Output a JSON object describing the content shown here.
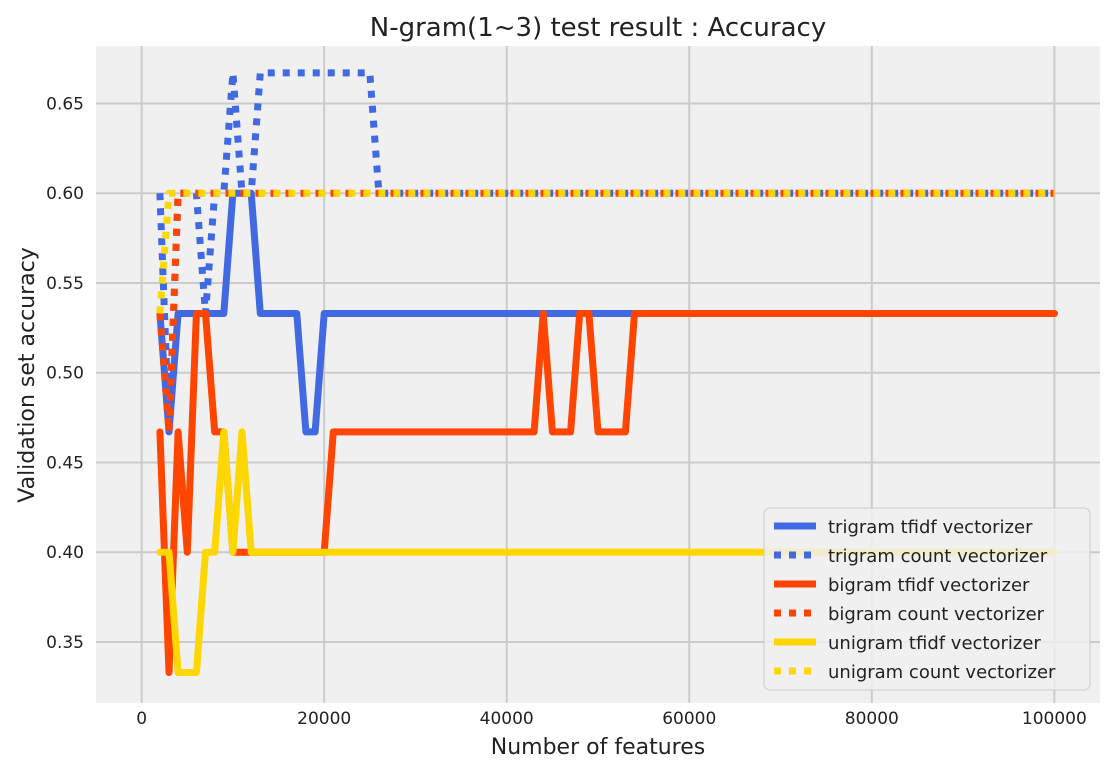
{
  "chart_data": {
    "type": "line",
    "title": "N-gram(1~3) test result : Accuracy",
    "xlabel": "Number of features",
    "ylabel": "Validation set accuracy",
    "xlim": [
      -5000,
      105000
    ],
    "ylim": [
      0.316,
      0.682
    ],
    "xticks": [
      0,
      20000,
      40000,
      60000,
      80000,
      100000
    ],
    "xtick_labels": [
      "0",
      "20000",
      "40000",
      "60000",
      "80000",
      "100000"
    ],
    "yticks": [
      0.35,
      0.4,
      0.45,
      0.5,
      0.55,
      0.6,
      0.65
    ],
    "ytick_labels": [
      "0.35",
      "0.40",
      "0.45",
      "0.50",
      "0.55",
      "0.60",
      "0.65"
    ],
    "grid": true,
    "legend_position": "bottom-right",
    "background": "#f0f0f0",
    "grid_color": "#cbcbcb",
    "series": [
      {
        "name": "trigram tfidf vectorizer",
        "color": "#4169e1",
        "style": "solid",
        "x": [
          2000,
          3000,
          4000,
          5000,
          6000,
          7000,
          8000,
          9000,
          10000,
          11000,
          12000,
          13000,
          14000,
          15000,
          16000,
          17000,
          18000,
          19000,
          20000,
          22000,
          26000,
          30000,
          40000,
          50000,
          54000,
          60000,
          70000,
          80000,
          90000,
          100000
        ],
        "y": [
          0.533,
          0.467,
          0.533,
          0.533,
          0.533,
          0.533,
          0.533,
          0.533,
          0.6,
          0.6,
          0.6,
          0.533,
          0.533,
          0.533,
          0.533,
          0.533,
          0.467,
          0.467,
          0.533,
          0.533,
          0.533,
          0.533,
          0.533,
          0.533,
          0.533,
          0.533,
          0.533,
          0.533,
          0.533,
          0.533
        ]
      },
      {
        "name": "trigram count vectorizer",
        "color": "#4169e1",
        "style": "dotted",
        "x": [
          2000,
          3000,
          4000,
          5000,
          6000,
          7000,
          8000,
          9000,
          10000,
          11000,
          12000,
          13000,
          14000,
          16000,
          18000,
          20000,
          22000,
          24000,
          25000,
          26000,
          27000,
          30000,
          40000,
          50000,
          60000,
          70000,
          80000,
          90000,
          100000
        ],
        "y": [
          0.6,
          0.467,
          0.6,
          0.6,
          0.6,
          0.533,
          0.6,
          0.6,
          0.667,
          0.6,
          0.6,
          0.667,
          0.667,
          0.667,
          0.667,
          0.667,
          0.667,
          0.667,
          0.667,
          0.6,
          0.6,
          0.6,
          0.6,
          0.6,
          0.6,
          0.6,
          0.6,
          0.6,
          0.6
        ]
      },
      {
        "name": "bigram tfidf vectorizer",
        "color": "#ff4500",
        "style": "solid",
        "x": [
          2000,
          3000,
          4000,
          5000,
          6000,
          7000,
          8000,
          9000,
          10000,
          11000,
          12000,
          14000,
          16000,
          18000,
          20000,
          21000,
          25000,
          30000,
          40000,
          43000,
          44000,
          45000,
          47000,
          48000,
          49000,
          50000,
          51000,
          53000,
          54000,
          60000,
          70000,
          80000,
          90000,
          100000
        ],
        "y": [
          0.467,
          0.333,
          0.467,
          0.4,
          0.533,
          0.533,
          0.467,
          0.467,
          0.4,
          0.4,
          0.4,
          0.4,
          0.4,
          0.4,
          0.4,
          0.467,
          0.467,
          0.467,
          0.467,
          0.467,
          0.533,
          0.467,
          0.467,
          0.533,
          0.533,
          0.467,
          0.467,
          0.467,
          0.533,
          0.533,
          0.533,
          0.533,
          0.533,
          0.533
        ]
      },
      {
        "name": "bigram count vectorizer",
        "color": "#ff4500",
        "style": "dotted",
        "x": [
          2000,
          3000,
          4000,
          5000,
          6000,
          8000,
          10000,
          15000,
          20000,
          30000,
          40000,
          50000,
          60000,
          70000,
          80000,
          90000,
          100000
        ],
        "y": [
          0.533,
          0.467,
          0.6,
          0.6,
          0.6,
          0.6,
          0.6,
          0.6,
          0.6,
          0.6,
          0.6,
          0.6,
          0.6,
          0.6,
          0.6,
          0.6,
          0.6
        ]
      },
      {
        "name": "unigram tfidf vectorizer",
        "color": "#ffd700",
        "style": "solid",
        "x": [
          2000,
          3000,
          4000,
          5000,
          6000,
          7000,
          8000,
          9000,
          10000,
          11000,
          12000,
          14000,
          16000,
          18000,
          20000,
          30000,
          40000,
          50000,
          60000,
          70000,
          80000,
          90000,
          100000
        ],
        "y": [
          0.4,
          0.4,
          0.333,
          0.333,
          0.333,
          0.4,
          0.4,
          0.467,
          0.4,
          0.467,
          0.4,
          0.4,
          0.4,
          0.4,
          0.4,
          0.4,
          0.4,
          0.4,
          0.4,
          0.4,
          0.4,
          0.4,
          0.4
        ]
      },
      {
        "name": "unigram count vectorizer",
        "color": "#ffd700",
        "style": "dotted",
        "x": [
          2000,
          3000,
          4000,
          5000,
          6000,
          8000,
          10000,
          15000,
          20000,
          30000,
          40000,
          50000,
          60000,
          70000,
          80000,
          90000,
          100000
        ],
        "y": [
          0.533,
          0.6,
          0.6,
          0.6,
          0.6,
          0.6,
          0.6,
          0.6,
          0.6,
          0.6,
          0.6,
          0.6,
          0.6,
          0.6,
          0.6,
          0.6,
          0.6
        ]
      }
    ]
  }
}
